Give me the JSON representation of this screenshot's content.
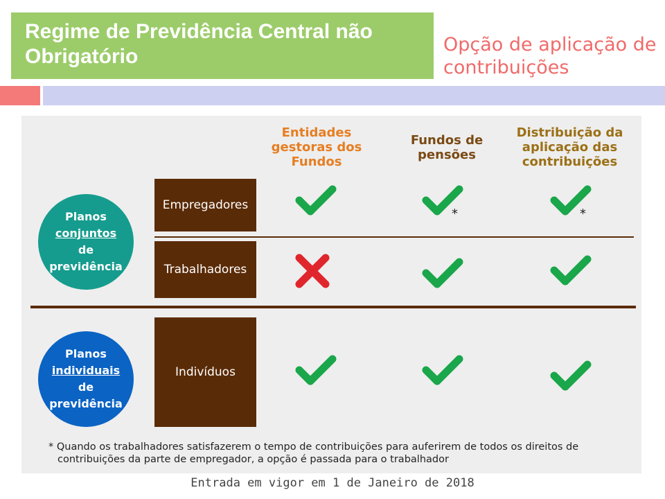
{
  "header": {
    "title": "Regime de Previdência Central não Obrigatório",
    "subtitle": "Opção de aplicação de contribuições"
  },
  "colors": {
    "title_bg": "#9ccc6a",
    "subtitle": "#f06a6a",
    "accent_red": "#f47a7a",
    "accent_purple": "#cdd0f0",
    "brown": "#5a2b07",
    "teal": "#159c8e",
    "blue": "#0b63c4",
    "check": "#1aa64a",
    "cross": "#e0262d"
  },
  "columns": {
    "col1": "Entidades gestoras dos Fundos",
    "col2": "Fundos de pensões",
    "col3": "Distribuição da aplicação das contribuições"
  },
  "groups": {
    "joint": {
      "line1": "Planos",
      "line2": "conjuntos",
      "line3": "de",
      "line4": "previdência"
    },
    "individual": {
      "line1": "Planos",
      "line2": "individuais",
      "line3": "de",
      "line4": "previdência"
    }
  },
  "rows": {
    "employers": {
      "label": "Empregadores",
      "marks": [
        "check",
        "check*",
        "check*"
      ]
    },
    "workers": {
      "label": "Trabalhadores",
      "marks": [
        "cross",
        "check",
        "check"
      ]
    },
    "individuals": {
      "label": "Indivíduos",
      "marks": [
        "check",
        "check",
        "check"
      ]
    }
  },
  "asterisk": "*",
  "footnote": {
    "line1": "* Quando os trabalhadores satisfazerem o tempo de contribuições para auferirem de todos os direitos de",
    "line2": "contribuições da parte de empregador, a opção é passada para o trabalhador"
  },
  "effective_date": "Entrada em vigor em 1 de Janeiro de 2018"
}
